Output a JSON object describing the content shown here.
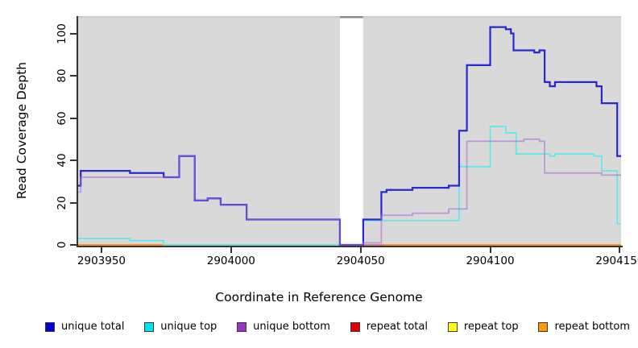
{
  "axes": {
    "y_label": "Read Coverage Depth",
    "x_label": "Coordinate in Reference Genome",
    "y_ticks": [
      0,
      20,
      40,
      60,
      80,
      100
    ],
    "x_ticks": [
      2903950,
      2904000,
      2904050,
      2904100,
      2904150
    ]
  },
  "legend": [
    {
      "label": "unique total",
      "color": "#0000dd"
    },
    {
      "label": "unique top",
      "color": "#00e5ee"
    },
    {
      "label": "unique bottom",
      "color": "#9933cc"
    },
    {
      "label": "repeat total",
      "color": "#e00000"
    },
    {
      "label": "repeat top",
      "color": "#ffff00"
    },
    {
      "label": "repeat bottom",
      "color": "#ff9900"
    }
  ],
  "chart_data": {
    "type": "line",
    "style": "step",
    "title": "",
    "xlabel": "Coordinate in Reference Genome",
    "ylabel": "Read Coverage Depth",
    "xlim": [
      2903941,
      2904150.5
    ],
    "ylim": [
      0,
      108.2
    ],
    "grid": false,
    "panel_color": "#d9d9d9",
    "panel_border_color": "#c6c6c6",
    "masked_region": {
      "x1": 2904042,
      "x2": 2904051,
      "fill": "#ffffff",
      "cap_color": "#8a8a8a"
    },
    "legend_position": "bottom",
    "draw_order": [
      "repeat total",
      "repeat top",
      "repeat bottom",
      "__overlays__",
      "unique top",
      "unique total",
      "unique bottom"
    ],
    "overlay_segments": [
      {
        "name": "blended-zero-line-green",
        "color": "#8ccf9c",
        "x1": 2903974,
        "x2": 2904042,
        "value": 0
      },
      {
        "name": "blended-zero-line-pink",
        "color": "#d6739e",
        "x1": 2904051,
        "x2": 2904059,
        "value": 0
      }
    ],
    "series": [
      {
        "name": "unique total",
        "color": "#2828d0",
        "width": 2.2,
        "opacity": 1,
        "points": [
          [
            2903941,
            28
          ],
          [
            2903942,
            35
          ],
          [
            2903961,
            34
          ],
          [
            2903974,
            32
          ],
          [
            2903980,
            42
          ],
          [
            2903986,
            21
          ],
          [
            2903991,
            22
          ],
          [
            2903996,
            19
          ],
          [
            2904006,
            12
          ],
          [
            2904042,
            0
          ],
          [
            2904051,
            12
          ],
          [
            2904058,
            25
          ],
          [
            2904060,
            26
          ],
          [
            2904070,
            27
          ],
          [
            2904084,
            28
          ],
          [
            2904088,
            54
          ],
          [
            2904091,
            85
          ],
          [
            2904100,
            103
          ],
          [
            2904106,
            102
          ],
          [
            2904108,
            100
          ],
          [
            2904109,
            92
          ],
          [
            2904117,
            91
          ],
          [
            2904119,
            92
          ],
          [
            2904121,
            77
          ],
          [
            2904123,
            75
          ],
          [
            2904125,
            77
          ],
          [
            2904141,
            75
          ],
          [
            2904143,
            67
          ],
          [
            2904149,
            42
          ]
        ]
      },
      {
        "name": "unique top",
        "color": "#5fe8e8",
        "width": 1.7,
        "opacity": 1,
        "points": [
          [
            2903941,
            3
          ],
          [
            2903961,
            2
          ],
          [
            2903974,
            0
          ],
          [
            2904051,
            11.5
          ],
          [
            2904088,
            37
          ],
          [
            2904100,
            56
          ],
          [
            2904106,
            53
          ],
          [
            2904110,
            43
          ],
          [
            2904123,
            42
          ],
          [
            2904125,
            43
          ],
          [
            2904140,
            42
          ],
          [
            2904143,
            35
          ],
          [
            2904149,
            10
          ]
        ]
      },
      {
        "name": "unique bottom",
        "color": "#a868d8",
        "width": 1.7,
        "opacity": 0.6,
        "points": [
          [
            2903941,
            25
          ],
          [
            2903942,
            32
          ],
          [
            2903980,
            42
          ],
          [
            2903986,
            21
          ],
          [
            2903991,
            22
          ],
          [
            2903996,
            19
          ],
          [
            2904006,
            12
          ],
          [
            2904042,
            0
          ],
          [
            2904051,
            1
          ],
          [
            2904058,
            14
          ],
          [
            2904070,
            15
          ],
          [
            2904084,
            17
          ],
          [
            2904091,
            49
          ],
          [
            2904113,
            50
          ],
          [
            2904119,
            49
          ],
          [
            2904121,
            34
          ],
          [
            2904143,
            33
          ]
        ]
      },
      {
        "name": "repeat total",
        "color": "#e00000",
        "width": 1.5,
        "opacity": 1,
        "points": [
          [
            2903941,
            0
          ]
        ]
      },
      {
        "name": "repeat top",
        "color": "#ffff00",
        "width": 1.5,
        "opacity": 1,
        "points": [
          [
            2903941,
            0
          ]
        ]
      },
      {
        "name": "repeat bottom",
        "color": "#ff8c1a",
        "width": 1.8,
        "opacity": 1,
        "points": [
          [
            2903941,
            0
          ]
        ]
      }
    ]
  }
}
